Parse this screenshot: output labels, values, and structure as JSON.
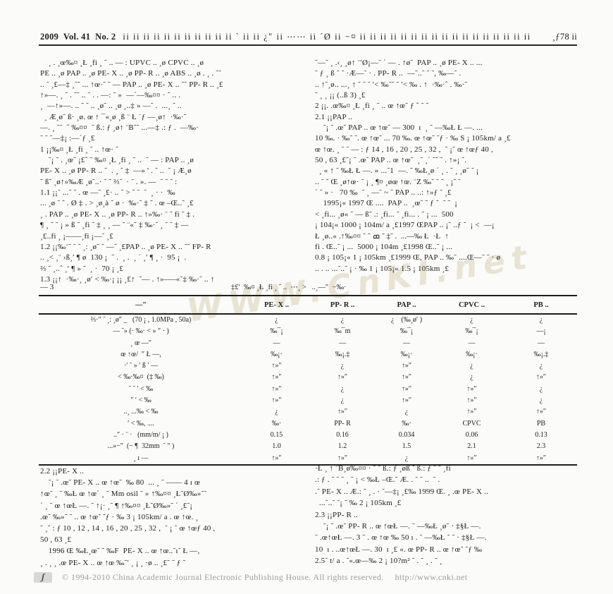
{
  "header": {
    "issue": "2009  Vol. 41  No. 2",
    "garble": "ii ii ii ii ii ii ii ii ii ii ii ˋ   ii     ii ¿″ ii ⋯⋯ ii ´Ø ii −¤ ii ii ii ii ii ii ii ii ii ii ii ii ii ii ii ii ii",
    "page_no": "¸ƒ78 ii"
  },
  "watermark": {
    "text": "WWW.CnKI.net"
  },
  "columns": {
    "left_top": [
      "    ¸ . ¸œ‰¤ ¸Ł ¸fi ¸ ˜ .. — : UPVC .. ¸ø CPVC .. ¸ø",
      "PE .. ¸ø PAP .. ¸ø PE- X .. ¸ø PP- R .. ¸ø ABS .. ¸ø . ¸ . ˜˜",
      ".. ˜ ¸£—‡ ¸˜˜ ... ↑œ·˜ ˜ — PAP .. ¸ø PE- X .. ˜˜ PP- R .. ¸£",
      "↑»—. ¸ ˜ . ˜˜ .. ˜ . . —: ˜ »  —´—‰¤¤ · ˜ .. .",
      "¸  —↑»—. .. ˜ ˜ .. ¸ø˜ .. ¸ø ¸..‡ » —˜ .  ...¸ ˜ ..",
      "  ¸ Æ¸ø˜ ß· ¸ø. œ ↑ ¯«¸ø ¸ß ¨ Ł ˙ƒ —¸ø↑  ·‰·˜",
      "—. ¸ ˜˜  ˆ ‰¤¤  ˜ ß.: ƒ ¸ø↑ ¨B˜˜ ...—‡ .: ƒ .  —‰·",
      "˜ ˜ ˜—‡¡ :—´ƒ ¸£",
      "1 ¡¡‰¤ ¸Ł ¸fi ¸ ˜ .. ↑œ· ˜",
      "    ˜¡ ˜ . ¸œ˜ ¡£ˆ ˜ ‰¤ ¸Ł ¸fi ¸ ˜ ..  ˜ — : PAP .. ¸ø",
      "PE- X .. ¸ø PP- R .. ˜  . ¸ ˜ ‡  —» ' . ˜ ..  ˜ ¡ Æ¸ø",
      "˜ ß˜ ¸ø↑»‰Æ ¸ø˜..· ˜ ˜ ⅔˜  · ˜ . ». —  ˜ ˜ ˜ :",
      "1.1 ¡¡˜ ...˜ ˜ . œ —˜ ¸£· .. ˜ > ˜ ˜  ˜  ¸ · ·  ‰",
      "... ¸ø ˜ ˜ . Ø ‡ . > ¸ø¸à ˜ ø ·  ‰·˜ ‡ ˜ . œ –Œ..˜ ¸£",
      "¸ . PAP .. ¸ø PE- X .. ¸ø PP- R .. ↑»‰· ¨ ˜ fi ˜ ‡ .",
      "¶ ¸ ˜ ˜ ¡ » ß ˜ ¸fi ˜ ‡ ¸ ¸ — ˜ ¨«˜ ‡ ‰·˜ ¸ ˜ ˜ ‡ —",
      "¸£..fi ¸ ¡——¸fi ¡—˜ ¸£",
      "1.2 ¡¡‰¨˜ ˜ ˜ ¸: ¸ø˜ ˜ —˜ ¸£PAP .. ¸ø PE- X .. ˜˜ FP- R",
      ".. ¸< ¸¨ ›ß¸′ ¶ ø  130 ¡  ˜ .  ¸ .  ¸ ´ ¸′ ¶ ¸ ·  95 ¡  .",
      "⅔ ˜ ¸..ˆ ¸′ ¶ » ˜  ¸ ·  70 ¡ ¸£",
      "1.3 ¡¡↑  ·‰·¸ ¸ø′ < ‰·¡ ¡¡ ¸£↑  ˜— . ↑»—–«˜‡ ‰·˜ .. ↑"
    ],
    "right_top": [
      "˜—˜ ¸ .‹¸ ¸ø↑ ¨′Ø¡—˜ ´ — . ↑ø˜  PAP .. ¸ø PE- X .. ...",
      "˜ ƒ ¸ ß ˜ ˜ ·Æ—˜ · . PP- R ..  —˜..˜ ˜ ˜, ‰—˜ .",
      ".. ↑˜¸ø.. ...¸ ↑ ˜ ˜ ˜ ′< ‰˜˜ ˜ ′< ‰ . ↑  ·‰·ˆ . ‰·˜",
      "˜ ¸ ¸ ¡¡ (..ß 3) ¸£",
      "2 ¡¡. .œ‰¤ ¸Ł ¸fi ¸ ˜ .. œ ↑œ˜ ƒ ˆ ˜ ˜",
      "2.1 ¡¡PAP ..",
      "    ˜¡ ˜ .œ˜ PAP .. œ ↑œ˜ — 300  ı  ¸ ˜ —‰Ł Ł —. ...",
      "10 ‰. · ‰˜ ˜. œ ↑œ˜ ... 70 ‰. œ ↑œ˜ ˜ƒ · ‰ S ¡ 105km/ a ¸£",
      "œ ↑œ. ¸ ˜ ˜ — : ƒ 14 , 16 , 20 , 25 , 32 ,  ˜ ¡˜ œ ↑œƒ 40 ,",
      "50 , 63 ¸£˜¡ ˜ .œ˜ PAP .. œ ↑œ˜  ¸˜ ¸´ ˜˜ ˜ . ↑»¡ ˜.",
      "  ¸ « ↑ ˜ ‰Ł Ł —. » ...˜1  —. ˜ ‰Ł¸ø ´ ¸ . ˜ ¸ ¸ø˜ ˜ ¡",
      ".. ˜ ˜ Œ ¸ø↑œ· ˜ ¡ ¸ ¶¤ ¸øœ ↑œ. ¨Z ‰˜ ˜ ˜ ¸ ¡˜ ˜",
      "´ ˜ » ·   70 ‰  ˜ ¸ —˜ ~ ˜ PAP .. ..: ↑»ƒ ˜ ¸£",
      "    1995¡« 1997 Œ ....  PAP ..  ¸œ˜ ˜ ƒ ˜  ˜ ˜  ¡",
      "< ¸fi... ¸ø« ˜ — ß˜ .: ¸fi... ˜ ¸fi... . ˜ ¡ ...  500",
      "¡ 104¡« 1000 ¡ 104m/ a ¸£1997 ŒPAP .. ¡˜ ..ƒ ˜  ¡ <  —¡",
      "Ł ¸ø..« .↑‰¤¤ ˜ ˜ ߘ ˜ ‡˜ .  ...—‰ Ł  ·Ł  ↑",
      "fi . Œ..˜ ¡ ...  5000 ¡ 104m ¸£1998 Œ..˜ ¡ ...",
      "0.8 ¡ 105¡« 1 ¡ 105km ¸£1999 Œ, PAP .. ‰˜ ....Œ—˜ ˜ · ø",
      ".. . .. ...˜..˜ ¡ · ‰ 1 ¡ 105¡« 1.5 ¡ 105km ¸£"
    ],
    "left_bottom": [
      "2.2 ¡¡PE- X ..",
      "    ˜¡ ˜ .œ˜ PE- X .. œ ↑œ˜  ‰ 80  ... ¸ ˜ —— 4 ı œ",
      "↑œ˜ ¸ ˜ ‰Ł œ ↑œ´ ¸ ˜ Mm osil ˜ » ↑‰¤¤ ¸Ł˜Ø‰»˜˜",
      "´ ¸ ˜ œ ↑œŁ —. ˜ ↑¡· ¸˜ ¶ ↑‰¤¤ ¸Ł˜Ø‰»˜ ´ ¸£˜¡",
      ".œ˜ ‰»˜ ˜ .. œ ↑œ˜ ˜ƒ · ‰ 3 ¡ 105km/ a . œ ↑œ. ¸",
      "˜ ¸˜ : ƒ 10 , 12 , 14 , 16 , 20 , 25 , 32 ,  ˜ ¡ ˜ œ ↑œƒ 40 ,",
      "50 , 63 ¸£",
      "    1996 Œ ‰Ł¸œ˜ ˜ ‰F  PE- X .. œ ↑œ..˜ı˜ Ł —,",
      "¸ . ¸ ¸ .œ PE- X .. œ ↑œ ‰˜′ ¸ ¡ ¸ ·ø .. ¸£˜ ˜ ƒ ˜"
    ],
    "right_bottom": [
      "·Ł ¸ ↑ ¨B¸ø‰¤¤ · ˜ ˜ ß.: ƒ ¸øß ˜ ß.: ƒ ˜ ˜ ¸fi",
      ".: ƒ . ˜ ˜ ˜ ¸ ˜ ¡ < ‰Ł –Œ.˜ Æ. . ˜ ˜ ..  ˜ .",
      ".˜ PE- X .. Æ.: ˜ ¸ . · ˜—‡¡ ¸£‰ 1999 Œ. ¸ .œ PE- X ..",
      "  ...˜..˜ ˜¡ ˜ ‰ 2 ¡ 105km ¸£",
      "2.3 ¡¡PP- R ..",
      "    ˜¡ ˜ .œ˜ PP- R .. œ ↑œŁ —. ˜ —‰Ł ¸ø˜ · ‡§Ł —.",
      "˜ .œ↑œŁ —. 3 ˜ . œ ↑œ ‰ 50 ı . ˜ —‰Ł ˜ ˜ · ‡§Ł —.",
      "10  ı . ..œ↑œŁ —. 30  ı ¸£ «. œ PP- R .. œ ↑œ˜ ˜ƒ ‰",
      "2.5˜ t/ a . ˜«.œ—‰ 2 ¡ 10?m² ˜ . ˜ ¸ . ˜ ¸"
    ]
  },
  "table": {
    "ref_label": "— 3",
    "caption": "‡£′  ‰¤ ¸Ł ¸fi ¸ ˜ ..  ⋯¸ >   ..¸—″  −‰·",
    "columns": [
      "—″",
      "PE- X ..",
      "PP- R ..",
      "PAP ..",
      "CPVC ..",
      "PB .."
    ],
    "rows": [
      {
        "label": "⅔·″ ˜ ¸: ¸ø″ _   (70 ¡ , 1.0MPa , 50a)",
        "cells": [
          "¿",
          "¿",
          "¿    (‰¸ø′ )",
          "¿",
          "¿"
        ]
      },
      {
        "label": "— ˜» (· ‰· < » ″ · )",
        "cells": [
          "‰¯¡",
          "‰¯m",
          "‰¯¡",
          "‰¯¡",
          "—¡"
        ]
      },
      {
        "label": "¸ œ —″",
        "cells": [
          "—",
          "—",
          "—",
          "—",
          "—"
        ]
      },
      {
        "label": "œ ↑œ/  ″ Ł —,",
        "cells": [
          "‰¡·",
          "‰¡.‡",
          "‰¡·",
          "‰¡·",
          "‰¡.‡"
        ]
      },
      {
        "label": "·′ ˜ » ′ ß ′ —",
        "cells": [
          "↑»″",
          "¿",
          "↑»″",
          "¿",
          "¿"
        ]
      },
      {
        "label": "< ‰·‰¤  (‡ ‰)",
        "cells": [
          "↑»″",
          "↑»″",
          "↑»″",
          "¿",
          "↑»″"
        ]
      },
      {
        "label": "˜ ˜ ′ < ‰",
        "cells": [
          "↑»″",
          "¿",
          "↑»″",
          "↑»″",
          "¿"
        ]
      },
      {
        "label": "″ ′ < ‰",
        "cells": [
          "↑»″",
          "¿",
          "↑»″",
          "↑»″",
          "¿"
        ]
      },
      {
        "label": "..¸ ...‰ < ‰",
        "cells": [
          "¿",
          "↑»″",
          "¿",
          "↑»″",
          "↑»″"
        ]
      },
      {
        "label": "′ < ‰, ....",
        "cells": [
          "‰·",
          "PP- R",
          "‰·",
          "CPVC",
          "PB"
        ]
      },
      {
        "label": "..″ · ¨ ·   (mm/m/ ¡ )",
        "cells": [
          "0.15",
          "0.16",
          "0.034",
          "0.06",
          "0.13"
        ]
      },
      {
        "label": "...»−″  (− ¶  32mm  ˜ ″ )",
        "cells": [
          "1.0",
          "1.2",
          "1.5",
          "2.1",
          "2.3"
        ]
      },
      {
        "label": "¸ ı —",
        "cells": [
          "↑»″",
          "↑»″",
          "¿",
          "↑»″",
          "↑»″"
        ]
      }
    ]
  },
  "footer": {
    "logo_glyph": "ʃ",
    "copyright": "© 1994-2010 China Academic Journal Electronic Publishing House. All rights reserved.",
    "url": "http://www.cnki.net"
  }
}
